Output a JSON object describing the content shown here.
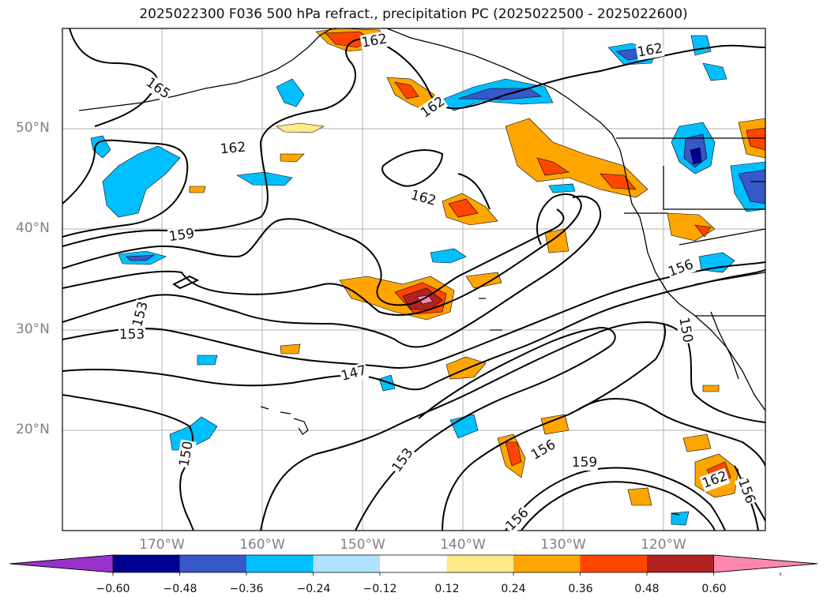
{
  "title": "2025022300 F036 500 hPa refract., precipitation PC (2025022500 - 2025022600)",
  "lat_labels": [
    "50°N",
    "40°N",
    "30°N",
    "20°N"
  ],
  "lon_labels": [
    "170°W",
    "160°W",
    "150°W",
    "140°W",
    "130°W",
    "120°W"
  ],
  "contour_labels": [
    "162",
    "162",
    "165",
    "162",
    "162",
    "162",
    "159",
    "156",
    "153",
    "153",
    "147",
    "150",
    "153",
    "156",
    "159",
    "156",
    "150",
    "162",
    "156"
  ],
  "colorbar": {
    "ticks": [
      "−0.60",
      "−0.48",
      "−0.36",
      "−0.24",
      "−0.12",
      "0.12",
      "0.24",
      "0.36",
      "0.48",
      "0.60"
    ],
    "colors": [
      "#9932cc",
      "#000090",
      "#3658c8",
      "#00bfff",
      "#b0e2ff",
      "#ffffff",
      "#ffe98a",
      "#ffa500",
      "#ff4500",
      "#b22222",
      "#ff88b0"
    ]
  },
  "colors": {
    "gridline": "#b0b0b0",
    "coast": "#000000",
    "contour": "#000000"
  }
}
